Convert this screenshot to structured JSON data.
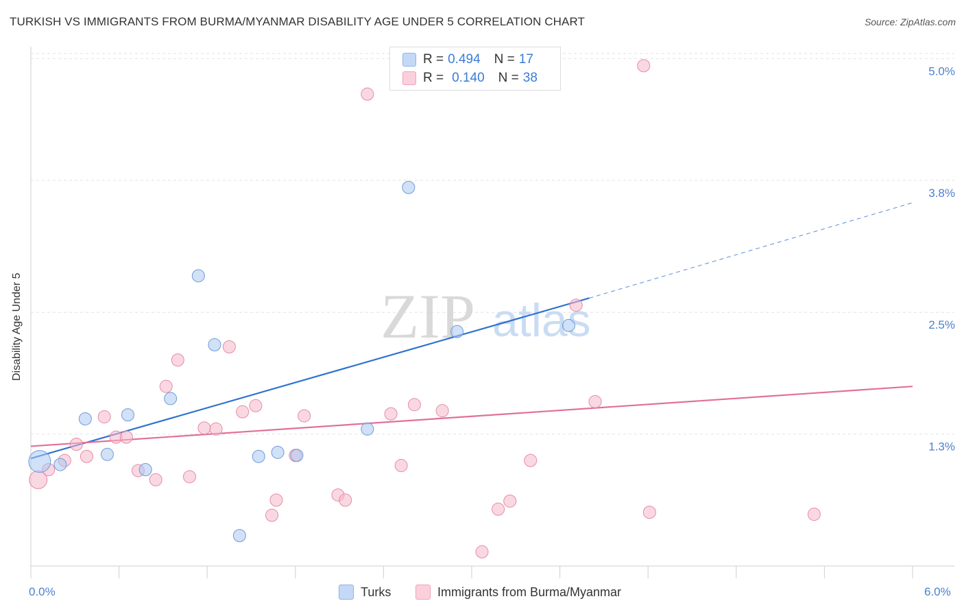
{
  "title": "TURKISH VS IMMIGRANTS FROM BURMA/MYANMAR DISABILITY AGE UNDER 5 CORRELATION CHART",
  "source": "Source: ZipAtlas.com",
  "watermark": {
    "zip": "ZIP",
    "atlas": "atlas"
  },
  "legend": {
    "r_label": "R =",
    "n_label": "N =",
    "rows": [
      {
        "r": "0.494",
        "n": "17"
      },
      {
        "r": "0.140",
        "n": "38"
      }
    ]
  },
  "chart_data": {
    "type": "scatter",
    "title": "TURKISH VS IMMIGRANTS FROM BURMA/MYANMAR DISABILITY AGE UNDER 5 CORRELATION CHART",
    "xlabel": "",
    "ylabel": "Disability Age Under 5",
    "xlim": [
      0,
      6.0
    ],
    "ylim": [
      0,
      5.05
    ],
    "x_tick_labels": [
      "0.0%",
      "6.0%"
    ],
    "y_ticks": [
      {
        "value": 1.3,
        "label": "1.3%"
      },
      {
        "value": 2.5,
        "label": "2.5%"
      },
      {
        "value": 3.8,
        "label": "3.8%"
      },
      {
        "value": 5.0,
        "label": "5.0%"
      }
    ],
    "colors": {
      "turks": "#a9c8f2",
      "turks_line": "#2f72d0",
      "burma": "#f6b8cb",
      "burma_line": "#e0709a"
    },
    "series": [
      {
        "name": "Turks",
        "points": [
          [
            0.06,
            1.03,
            16
          ],
          [
            0.2,
            1.0,
            9
          ],
          [
            0.37,
            1.45,
            9
          ],
          [
            0.52,
            1.1,
            9
          ],
          [
            0.66,
            1.49,
            9
          ],
          [
            0.78,
            0.95,
            9
          ],
          [
            0.95,
            1.65,
            9
          ],
          [
            1.14,
            2.86,
            9
          ],
          [
            1.25,
            2.18,
            9
          ],
          [
            1.42,
            0.3,
            9
          ],
          [
            1.55,
            1.08,
            9
          ],
          [
            1.68,
            1.12,
            9
          ],
          [
            1.81,
            1.09,
            9
          ],
          [
            2.29,
            1.35,
            9
          ],
          [
            2.57,
            3.73,
            9
          ],
          [
            2.9,
            2.31,
            9
          ],
          [
            3.66,
            2.37,
            9
          ]
        ],
        "fit": {
          "x0": 0.0,
          "y0": 1.06,
          "x1": 3.8,
          "y1": 2.64,
          "x_ext": 6.0,
          "y_ext": 3.58
        }
      },
      {
        "name": "Immigrants from Burma/Myanmar",
        "points": [
          [
            0.05,
            0.85,
            13
          ],
          [
            0.12,
            0.95,
            9
          ],
          [
            0.23,
            1.04,
            9
          ],
          [
            0.31,
            1.2,
            9
          ],
          [
            0.38,
            1.08,
            9
          ],
          [
            0.5,
            1.47,
            9
          ],
          [
            0.58,
            1.27,
            9
          ],
          [
            0.65,
            1.27,
            9
          ],
          [
            0.73,
            0.94,
            9
          ],
          [
            0.85,
            0.85,
            9
          ],
          [
            0.92,
            1.77,
            9
          ],
          [
            1.0,
            2.03,
            9
          ],
          [
            1.08,
            0.88,
            9
          ],
          [
            1.18,
            1.36,
            9
          ],
          [
            1.26,
            1.35,
            9
          ],
          [
            1.35,
            2.16,
            9
          ],
          [
            1.44,
            1.52,
            9
          ],
          [
            1.53,
            1.58,
            9
          ],
          [
            1.64,
            0.5,
            9
          ],
          [
            1.67,
            0.65,
            9
          ],
          [
            1.8,
            1.09,
            9
          ],
          [
            1.86,
            1.48,
            9
          ],
          [
            2.09,
            0.7,
            9
          ],
          [
            2.14,
            0.65,
            9
          ],
          [
            2.29,
            4.65,
            9
          ],
          [
            2.45,
            1.5,
            9
          ],
          [
            2.52,
            0.99,
            9
          ],
          [
            2.61,
            1.59,
            9
          ],
          [
            2.8,
            1.53,
            9
          ],
          [
            3.07,
            0.14,
            9
          ],
          [
            3.18,
            0.56,
            9
          ],
          [
            3.26,
            0.64,
            9
          ],
          [
            3.4,
            1.04,
            9
          ],
          [
            3.71,
            2.57,
            9
          ],
          [
            3.84,
            1.62,
            9
          ],
          [
            4.17,
            4.93,
            9
          ],
          [
            4.21,
            0.53,
            9
          ],
          [
            5.33,
            0.51,
            9
          ]
        ],
        "fit": {
          "x0": 0.0,
          "y0": 1.18,
          "x1": 6.0,
          "y1": 1.77
        }
      }
    ]
  },
  "bottom_legend": {
    "turks": "Turks",
    "burma": "Immigrants from Burma/Myanmar"
  }
}
